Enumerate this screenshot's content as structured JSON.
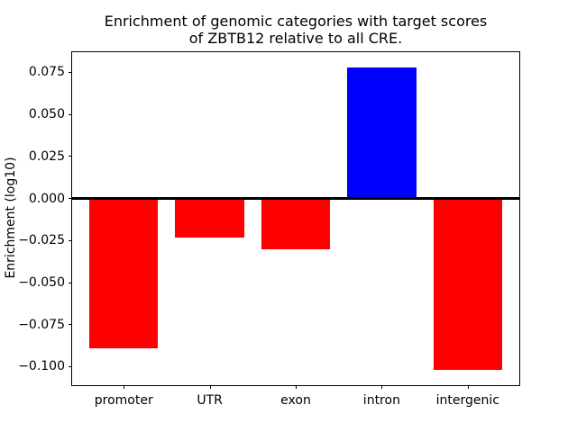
{
  "chart_data": {
    "type": "bar",
    "title": "Enrichment of genomic categories with target scores of ZBTB12 relative to all CRE.",
    "title_lines": [
      "Enrichment of genomic categories with target scores",
      "of ZBTB12 relative to all CRE."
    ],
    "xlabel": "",
    "ylabel": "Enrichment (log10)",
    "categories": [
      "promoter",
      "UTR",
      "exon",
      "intron",
      "intergenic"
    ],
    "values": [
      -0.089,
      -0.023,
      -0.03,
      0.078,
      -0.102
    ],
    "bar_colors": [
      "#ff0000",
      "#ff0000",
      "#ff0000",
      "#0000ff",
      "#ff0000"
    ],
    "positive_color": "#0000ff",
    "negative_color": "#ff0000",
    "bar_width": 0.8,
    "ylim": [
      -0.111,
      0.087
    ],
    "yticks": [
      0.075,
      0.05,
      0.025,
      0.0,
      -0.025,
      -0.05,
      -0.075,
      -0.1
    ],
    "ytick_labels": [
      "0.075",
      "0.050",
      "0.025",
      "0.000",
      "−0.025",
      "−0.050",
      "−0.075",
      "−0.100"
    ],
    "grid": false,
    "legend": null,
    "zero_line": true,
    "zero_line_color": "#000000"
  }
}
